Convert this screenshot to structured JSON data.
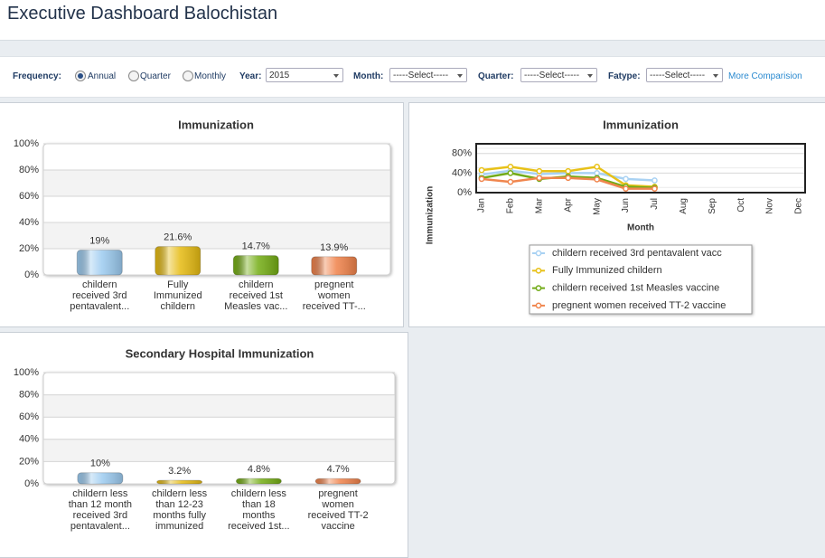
{
  "header": {
    "title": "Executive Dashboard Balochistan"
  },
  "filters": {
    "frequency": {
      "label": "Frequency:",
      "options": [
        {
          "label": "Annual",
          "checked": true
        },
        {
          "label": "Quarter",
          "checked": false
        },
        {
          "label": "Monthly",
          "checked": false
        }
      ]
    },
    "year": {
      "label": "Year:",
      "value": "2015"
    },
    "month": {
      "label": "Month:",
      "value": "-----Select-----"
    },
    "quarter": {
      "label": "Quarter:",
      "value": "-----Select-----"
    },
    "fatype": {
      "label": "Fatype:",
      "value": "-----Select-----"
    },
    "link": "More Comparision"
  },
  "chart_data": [
    {
      "type": "bar",
      "title": "Immunization",
      "categories": [
        [
          "childern",
          "received 3rd",
          "pentavalent..."
        ],
        [
          "Fully",
          "Immunized",
          "childern"
        ],
        [
          "childern",
          "received 1st",
          "Measles vac..."
        ],
        [
          "pregnent",
          "women",
          "received TT-..."
        ]
      ],
      "values": [
        19,
        21.6,
        14.7,
        13.9
      ],
      "value_labels": [
        "19%",
        "21.6%",
        "14.7%",
        "13.9%"
      ],
      "colors": [
        "#9ccbf0",
        "#e6bb12",
        "#74ad14",
        "#f0824a"
      ],
      "ylim": [
        0,
        100
      ],
      "yticks": [
        {
          "value": 0,
          "label": "0%"
        },
        {
          "value": 20,
          "label": "20%"
        },
        {
          "value": 40,
          "label": "40%"
        },
        {
          "value": 60,
          "label": "60%"
        },
        {
          "value": 80,
          "label": "80%"
        },
        {
          "value": 100,
          "label": "100%"
        }
      ],
      "grid": true
    },
    {
      "type": "line",
      "title": "Immunization",
      "y_label": "Immunization",
      "x_label": "Month",
      "categories": [
        "Jan",
        "Feb",
        "Mar",
        "Apr",
        "May",
        "Jun",
        "Jul",
        "Aug",
        "Sep",
        "Oct",
        "Nov",
        "Dec"
      ],
      "series": [
        {
          "name": "childern received 3rd pentavalent vacc",
          "color": "#a9d2f3",
          "values": [
            37,
            45,
            38,
            40,
            40,
            28,
            25,
            null,
            null,
            null,
            null,
            null
          ]
        },
        {
          "name": "Fully Immunized childern",
          "color": "#e8c118",
          "values": [
            46,
            53,
            44,
            44,
            53,
            15,
            12,
            null,
            null,
            null,
            null,
            null
          ]
        },
        {
          "name": "childern received 1st Measles vaccine",
          "color": "#72ab18",
          "values": [
            30,
            40,
            28,
            33,
            30,
            12,
            10,
            null,
            null,
            null,
            null,
            null
          ]
        },
        {
          "name": "pregnent women received TT-2 vaccine",
          "color": "#f0864e",
          "values": [
            28,
            22,
            30,
            30,
            27,
            8,
            8,
            null,
            null,
            null,
            null,
            null
          ]
        }
      ],
      "ylim": [
        0,
        100
      ],
      "yticks": [
        {
          "value": 0,
          "label": "0%"
        },
        {
          "value": 40,
          "label": "40%"
        },
        {
          "value": 80,
          "label": "80%"
        }
      ],
      "grid": true,
      "legend": "bottom"
    },
    {
      "type": "bar",
      "title": "Secondary Hospital Immunization",
      "categories": [
        [
          "childern less",
          "than 12 month",
          "received 3rd",
          "pentavalent..."
        ],
        [
          "childern less",
          "than 12-23",
          "months fully",
          "immunized"
        ],
        [
          "childern less",
          "than 18",
          "months",
          "received 1st..."
        ],
        [
          "pregnent",
          "women",
          "received TT-2",
          "vaccine"
        ]
      ],
      "values": [
        10,
        3.2,
        4.8,
        4.7
      ],
      "value_labels": [
        "10%",
        "3.2%",
        "4.8%",
        "4.7%"
      ],
      "colors": [
        "#9ccbf0",
        "#e6bb12",
        "#74ad14",
        "#f0824a"
      ],
      "ylim": [
        0,
        100
      ],
      "yticks": [
        {
          "value": 0,
          "label": "0%"
        },
        {
          "value": 20,
          "label": "20%"
        },
        {
          "value": 40,
          "label": "40%"
        },
        {
          "value": 60,
          "label": "60%"
        },
        {
          "value": 80,
          "label": "80%"
        },
        {
          "value": 100,
          "label": "100%"
        }
      ],
      "grid": true
    }
  ]
}
